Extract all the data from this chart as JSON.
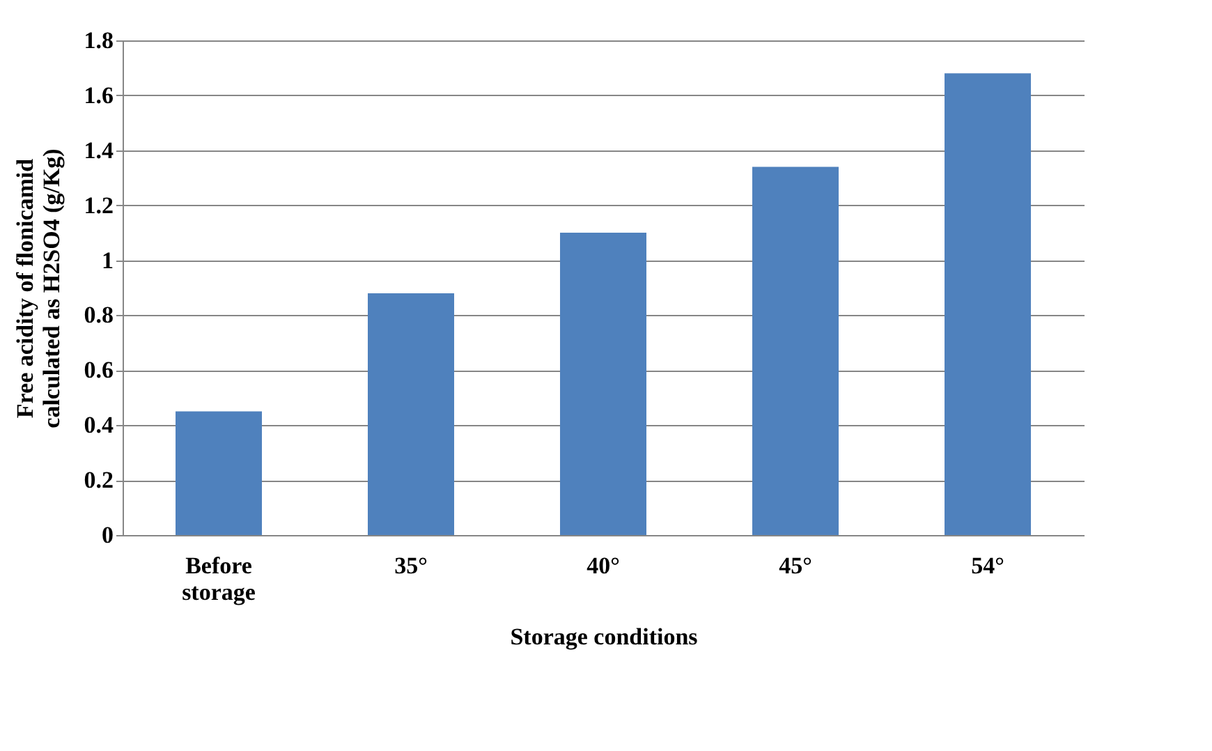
{
  "chart_data": {
    "type": "bar",
    "xlabel": "Storage conditions",
    "ylabel": "Free acidity of flonicamid calculated as H2SO4 (g/Kg)",
    "categories": [
      "Before storage",
      "35°",
      "40°",
      "45°",
      "54°"
    ],
    "values": [
      0.45,
      0.88,
      1.1,
      1.34,
      1.68
    ],
    "color": "#4f81bd",
    "ylim": [
      0,
      1.8
    ],
    "yticks": [
      0,
      0.2,
      0.4,
      0.6,
      0.8,
      1,
      1.2,
      1.4,
      1.6,
      1.8
    ],
    "grid": "y"
  }
}
